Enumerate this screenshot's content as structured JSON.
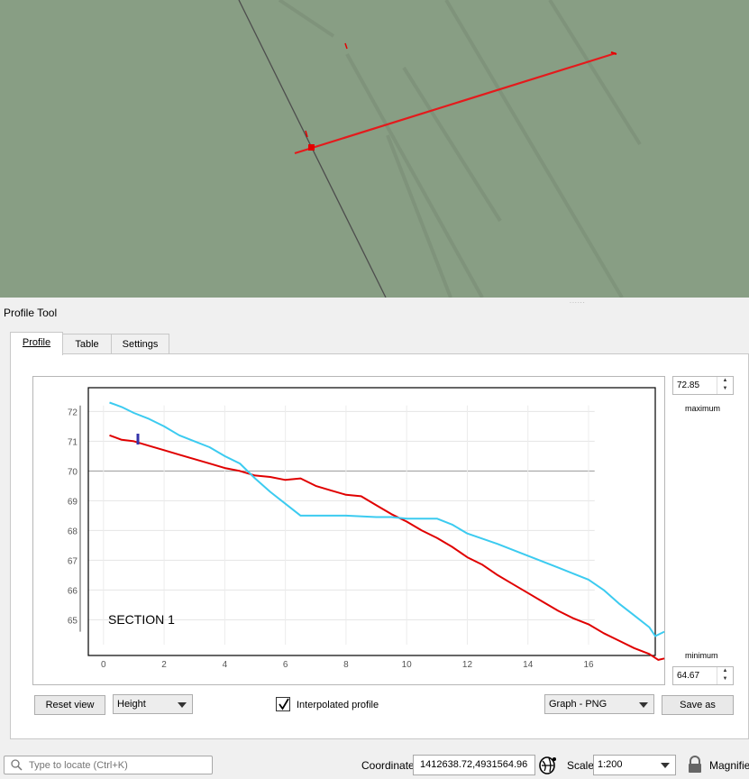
{
  "map": {
    "canvas_color": "#889e84",
    "profile_line_color": "#e41a1c",
    "point_color": "#e30000"
  },
  "dock": {
    "title": "Profile Tool"
  },
  "tabs": [
    {
      "label": "Profile",
      "active": true
    },
    {
      "label": "Table",
      "active": false
    },
    {
      "label": "Settings",
      "active": false
    }
  ],
  "profile": {
    "maximum_value": "72.85",
    "maximum_label": "maximum",
    "minimum_value": "64.67",
    "minimum_label": "minimum",
    "reset_view_label": "Reset view",
    "axis_mode": "Height",
    "interpolated_checked": true,
    "interpolated_label": "Interpolated profile",
    "export_format": "Graph - PNG",
    "save_as_label": "Save as",
    "section_label": "SECTION 1"
  },
  "chart_data": {
    "type": "line",
    "title": "",
    "xlabel": "",
    "ylabel": "",
    "xlim": [
      -0.5,
      18.2
    ],
    "ylim": [
      63.8,
      72.8
    ],
    "x_ticks": [
      "0",
      "2",
      "4",
      "6",
      "8",
      "10",
      "12",
      "14",
      "16"
    ],
    "y_ticks": [
      "72",
      "71",
      "70",
      "69",
      "68",
      "67",
      "66",
      "65"
    ],
    "grid": true,
    "series": [
      {
        "color": "#e00000",
        "x": [
          0.2,
          0.6,
          1.0,
          1.5,
          2.0,
          2.5,
          3.0,
          3.5,
          4.0,
          4.5,
          5.0,
          5.5,
          6.0,
          6.5,
          7.0,
          7.5,
          8.0,
          8.5,
          9.0,
          9.5,
          10.0,
          10.5,
          11.0,
          11.5,
          12.0,
          12.5,
          13.0,
          13.5,
          14.0,
          14.5,
          15.0,
          15.5,
          16.0,
          16.5,
          17.0,
          17.5,
          18.0,
          18.3,
          18.5
        ],
        "values": [
          71.2,
          71.05,
          71.0,
          70.85,
          70.7,
          70.55,
          70.4,
          70.25,
          70.1,
          70.0,
          69.85,
          69.8,
          69.7,
          69.75,
          69.5,
          69.35,
          69.2,
          69.15,
          68.85,
          68.55,
          68.3,
          68.0,
          67.75,
          67.45,
          67.1,
          66.85,
          66.5,
          66.2,
          65.9,
          65.6,
          65.3,
          65.05,
          64.85,
          64.55,
          64.3,
          64.05,
          63.85,
          63.65,
          63.7
        ]
      },
      {
        "color": "#3ccbf0",
        "x": [
          0.2,
          0.6,
          1.0,
          1.5,
          2.0,
          2.5,
          3.0,
          3.5,
          4.0,
          4.5,
          5.0,
          5.5,
          6.0,
          6.5,
          7.0,
          8.0,
          9.0,
          9.5,
          10.0,
          11.0,
          11.5,
          12.0,
          13.0,
          14.0,
          15.0,
          16.0,
          16.5,
          17.0,
          17.5,
          18.0,
          18.2,
          18.5
        ],
        "values": [
          72.3,
          72.15,
          71.95,
          71.75,
          71.5,
          71.2,
          71.0,
          70.8,
          70.5,
          70.25,
          69.75,
          69.3,
          68.9,
          68.5,
          68.5,
          68.5,
          68.45,
          68.45,
          68.4,
          68.4,
          68.2,
          67.9,
          67.55,
          67.15,
          66.75,
          66.35,
          66.0,
          65.55,
          65.15,
          64.75,
          64.45,
          64.6
        ]
      }
    ]
  },
  "statusbar": {
    "locator_placeholder": "Type to locate (Ctrl+K)",
    "coordinate_label": "Coordinate",
    "coordinate_value": "1412638.72,4931564.96",
    "scale_label": "Scale",
    "scale_value": "1:200",
    "magnifier_label": "Magnifier"
  }
}
